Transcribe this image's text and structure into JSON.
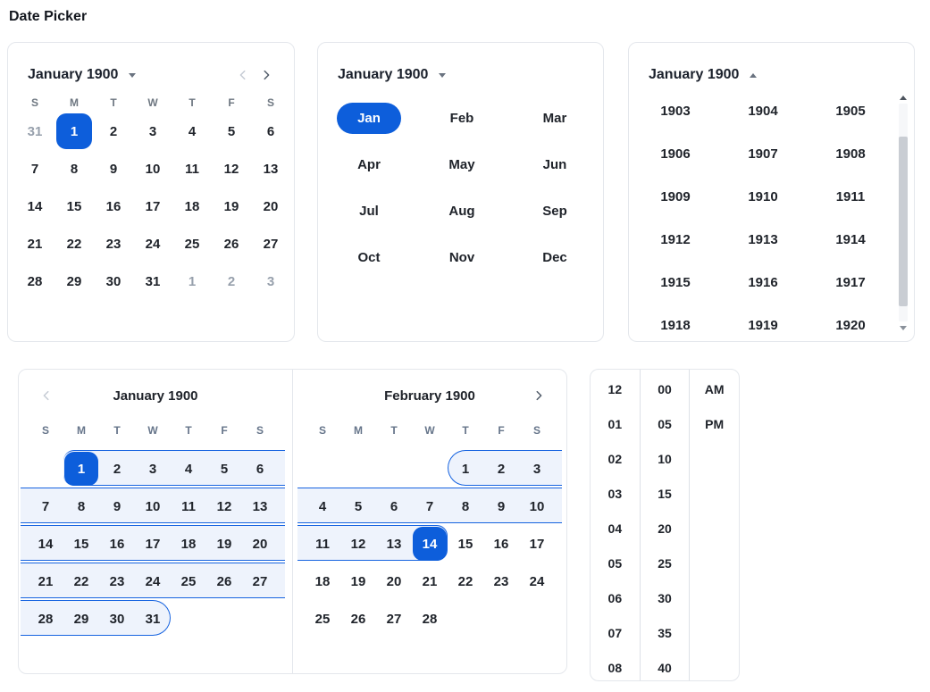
{
  "title": "Date Picker",
  "colors": {
    "accent": "#0d5edb",
    "range_fill": "#eef3fc",
    "range_border": "#1663e0"
  },
  "calendar": {
    "header": "January 1900",
    "weekdays": [
      "S",
      "M",
      "T",
      "W",
      "T",
      "F",
      "S"
    ],
    "rows": [
      [
        {
          "d": "31",
          "muted": true
        },
        {
          "d": "1",
          "selected": true
        },
        "2",
        "3",
        "4",
        "5",
        "6"
      ],
      [
        "7",
        "8",
        "9",
        "10",
        "11",
        "12",
        "13"
      ],
      [
        "14",
        "15",
        "16",
        "17",
        "18",
        "19",
        "20"
      ],
      [
        "21",
        "22",
        "23",
        "24",
        "25",
        "26",
        "27"
      ],
      [
        "28",
        "29",
        "30",
        "31",
        {
          "d": "1",
          "muted": true
        },
        {
          "d": "2",
          "muted": true
        },
        {
          "d": "3",
          "muted": true
        }
      ]
    ]
  },
  "month_picker": {
    "header": "January 1900",
    "selected": "Jan",
    "rows": [
      [
        "Jan",
        "Feb",
        "Mar"
      ],
      [
        "Apr",
        "May",
        "Jun"
      ],
      [
        "Jul",
        "Aug",
        "Sep"
      ],
      [
        "Oct",
        "Nov",
        "Dec"
      ]
    ]
  },
  "year_picker": {
    "header": "January 1900",
    "rows": [
      [
        "1903",
        "1904",
        "1905"
      ],
      [
        "1906",
        "1907",
        "1908"
      ],
      [
        "1909",
        "1910",
        "1911"
      ],
      [
        "1912",
        "1913",
        "1914"
      ],
      [
        "1915",
        "1916",
        "1917"
      ],
      [
        "1918",
        "1919",
        "1920"
      ]
    ]
  },
  "range_calendar": {
    "weekdays": [
      "S",
      "M",
      "T",
      "W",
      "T",
      "F",
      "S"
    ],
    "months": [
      {
        "title": "January 1900",
        "rows": [
          {
            "cells": [
              "",
              "1",
              "2",
              "3",
              "4",
              "5",
              "6"
            ],
            "sel": 1,
            "band": {
              "from": 1,
              "to": 6,
              "capL": "tile",
              "bleedR": true
            }
          },
          {
            "cells": [
              "7",
              "8",
              "9",
              "10",
              "11",
              "12",
              "13"
            ],
            "band": {
              "from": 0,
              "to": 6,
              "bleedL": true,
              "bleedR": true
            }
          },
          {
            "cells": [
              "14",
              "15",
              "16",
              "17",
              "18",
              "19",
              "20"
            ],
            "band": {
              "from": 0,
              "to": 6,
              "bleedL": true,
              "bleedR": true
            }
          },
          {
            "cells": [
              "21",
              "22",
              "23",
              "24",
              "25",
              "26",
              "27"
            ],
            "band": {
              "from": 0,
              "to": 6,
              "bleedL": true,
              "bleedR": true
            }
          },
          {
            "cells": [
              "28",
              "29",
              "30",
              "31",
              "",
              "",
              ""
            ],
            "band": {
              "from": 0,
              "to": 3,
              "bleedL": true,
              "capR": "round"
            }
          }
        ]
      },
      {
        "title": "February 1900",
        "rows": [
          {
            "cells": [
              "",
              "",
              "",
              "",
              "1",
              "2",
              "3"
            ],
            "band": {
              "from": 4,
              "to": 6,
              "capL": "round",
              "bleedR": true
            }
          },
          {
            "cells": [
              "4",
              "5",
              "6",
              "7",
              "8",
              "9",
              "10"
            ],
            "band": {
              "from": 0,
              "to": 6,
              "bleedL": true,
              "bleedR": true
            }
          },
          {
            "cells": [
              "11",
              "12",
              "13",
              "14",
              "15",
              "16",
              "17"
            ],
            "sel": 3,
            "band": {
              "from": 0,
              "to": 3,
              "bleedL": true,
              "capR": "tile"
            }
          },
          {
            "cells": [
              "18",
              "19",
              "20",
              "21",
              "22",
              "23",
              "24"
            ]
          },
          {
            "cells": [
              "25",
              "26",
              "27",
              "28",
              "",
              "",
              ""
            ]
          }
        ]
      }
    ]
  },
  "time_picker": {
    "hours": [
      "12",
      "01",
      "02",
      "03",
      "04",
      "05",
      "06",
      "07",
      "08"
    ],
    "minutes": [
      "00",
      "05",
      "10",
      "15",
      "20",
      "25",
      "30",
      "35",
      "40"
    ],
    "meridiem": [
      "AM",
      "PM"
    ]
  }
}
